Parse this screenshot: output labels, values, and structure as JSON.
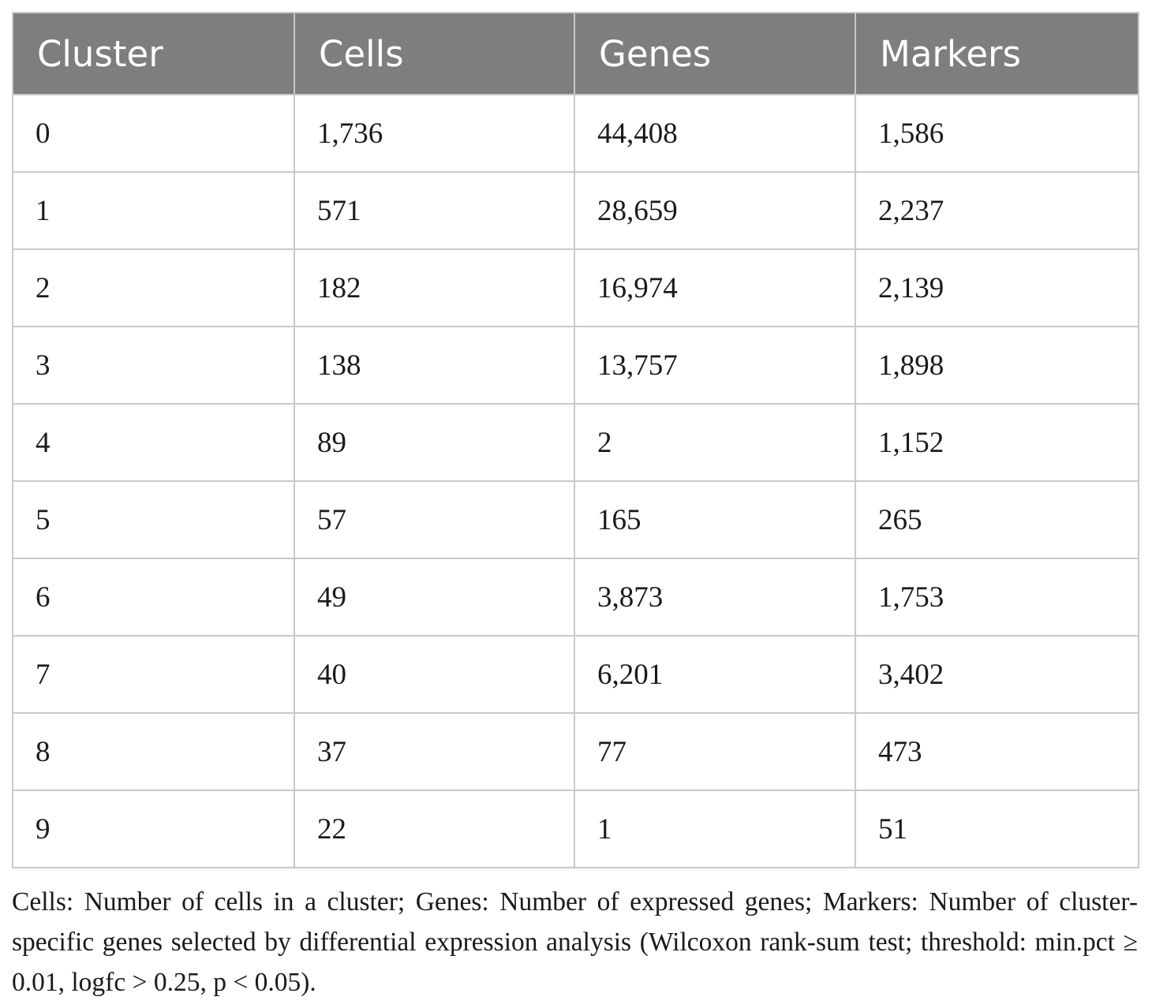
{
  "table": {
    "headers": [
      "Cluster",
      "Cells",
      "Genes",
      "Markers"
    ],
    "rows": [
      [
        "0",
        "1,736",
        "44,408",
        "1,586"
      ],
      [
        "1",
        "571",
        "28,659",
        "2,237"
      ],
      [
        "2",
        "182",
        "16,974",
        "2,139"
      ],
      [
        "3",
        "138",
        "13,757",
        "1,898"
      ],
      [
        "4",
        "89",
        "2",
        "1,152"
      ],
      [
        "5",
        "57",
        "165",
        "265"
      ],
      [
        "6",
        "49",
        "3,873",
        "1,753"
      ],
      [
        "7",
        "40",
        "6,201",
        "3,402"
      ],
      [
        "8",
        "37",
        "77",
        "473"
      ],
      [
        "9",
        "22",
        "1",
        "51"
      ]
    ]
  },
  "footnote": "Cells: Number of cells in a cluster; Genes: Number of expressed genes; Markers: Number of cluster-specific genes selected by differential expression analysis (Wilcoxon rank-sum test; threshold: min.pct ≥ 0.01, logfc > 0.25, p < 0.05).",
  "colors": {
    "header_bg": "#7d7e7d",
    "header_text": "#ffffff",
    "grid_line": "#c9c9c9",
    "body_text": "#1a1a1a"
  }
}
